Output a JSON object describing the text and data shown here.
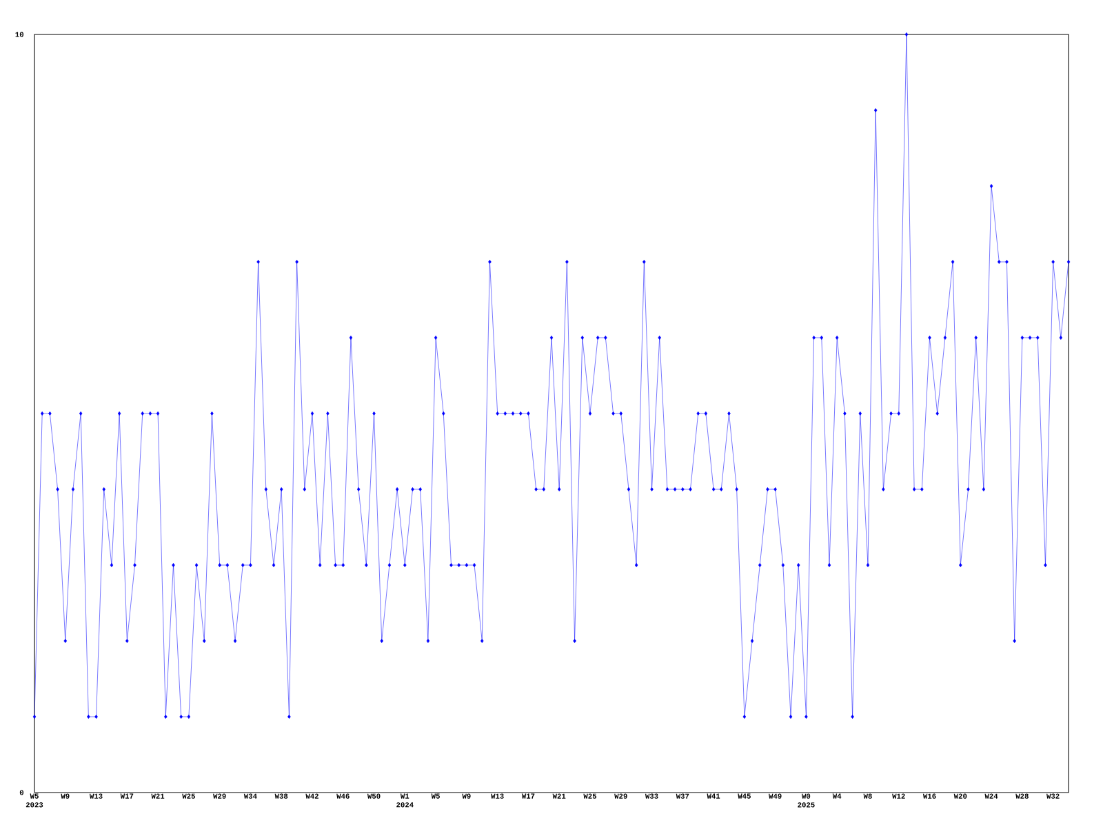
{
  "chart_data": {
    "type": "line",
    "color": "#0000ff",
    "marker": "diamond",
    "line_style": "solid",
    "grid": false,
    "categories": [
      "W5 2023",
      null,
      null,
      null,
      "W9",
      null,
      null,
      null,
      "W13",
      null,
      null,
      null,
      "W17",
      null,
      null,
      null,
      "W21",
      null,
      null,
      null,
      "W25",
      null,
      null,
      null,
      "W29",
      null,
      null,
      null,
      "W34",
      null,
      null,
      null,
      "W38",
      null,
      null,
      null,
      "W42",
      null,
      null,
      null,
      "W46",
      null,
      null,
      null,
      "W50",
      null,
      null,
      null,
      "W1 2024",
      null,
      null,
      null,
      "W5",
      null,
      null,
      null,
      "W9",
      null,
      null,
      null,
      "W13",
      null,
      null,
      null,
      "W17",
      null,
      null,
      null,
      "W21",
      null,
      null,
      null,
      "W25",
      null,
      null,
      null,
      "W29",
      null,
      null,
      null,
      "W33",
      null,
      null,
      null,
      "W37",
      null,
      null,
      null,
      "W41",
      null,
      null,
      null,
      "W45",
      null,
      null,
      null,
      "W49",
      null,
      null,
      null,
      "W0 2025",
      null,
      null,
      null,
      "W4",
      null,
      null,
      null,
      "W8",
      null,
      null,
      null,
      "W12",
      null,
      null,
      null,
      "W16",
      null,
      null,
      null,
      "W20",
      null,
      null,
      null,
      "W24",
      null,
      null,
      null,
      "W28",
      null,
      null,
      null,
      "W32",
      null,
      null
    ],
    "values": [
      1,
      5,
      5,
      4,
      2,
      4,
      5,
      1,
      1,
      4,
      3,
      5,
      2,
      3,
      5,
      5,
      5,
      1,
      3,
      1,
      1,
      3,
      2,
      5,
      3,
      3,
      2,
      3,
      3,
      7,
      4,
      3,
      4,
      1,
      7,
      4,
      5,
      3,
      5,
      3,
      3,
      6,
      4,
      3,
      5,
      2,
      3,
      4,
      3,
      4,
      4,
      2,
      6,
      5,
      3,
      3,
      3,
      3,
      2,
      7,
      5,
      5,
      5,
      5,
      5,
      4,
      4,
      6,
      4,
      7,
      2,
      6,
      5,
      6,
      6,
      5,
      5,
      4,
      3,
      7,
      4,
      6,
      4,
      4,
      4,
      4,
      5,
      5,
      4,
      4,
      5,
      4,
      1,
      2,
      3,
      4,
      4,
      3,
      1,
      3,
      1,
      6,
      6,
      3,
      6,
      5,
      1,
      5,
      3,
      9,
      4,
      5,
      5,
      10,
      4,
      4,
      6,
      5,
      6,
      7,
      3,
      4,
      6,
      4,
      8,
      7,
      7,
      2,
      6,
      6,
      6,
      3,
      7,
      6,
      7
    ],
    "ylim": [
      0,
      10
    ],
    "yticks": [
      0,
      10
    ]
  }
}
